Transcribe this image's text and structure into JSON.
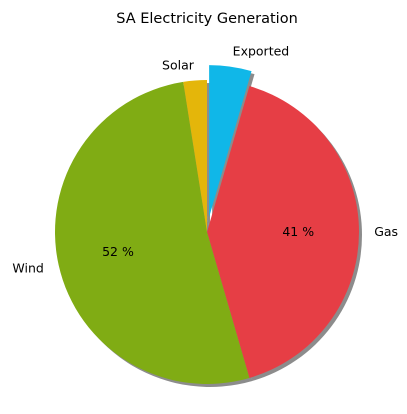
{
  "chart_data": {
    "type": "pie",
    "title": "SA Electricity Generation",
    "slices": [
      {
        "label": "Exported",
        "value": 4.5,
        "color": "#10b7e8",
        "explode": true,
        "pct_label": ""
      },
      {
        "label": "Gas",
        "value": 41,
        "color": "#e63e45",
        "explode": false,
        "pct_label": "41 %"
      },
      {
        "label": "Wind",
        "value": 52,
        "color": "#80ac14",
        "explode": false,
        "pct_label": "52 %"
      },
      {
        "label": "Solar",
        "value": 2.5,
        "color": "#e4b60a",
        "explode": false,
        "pct_label": ""
      }
    ],
    "start_angle_deg": 90,
    "direction": "clockwise",
    "shadow": true,
    "legend": "none"
  }
}
